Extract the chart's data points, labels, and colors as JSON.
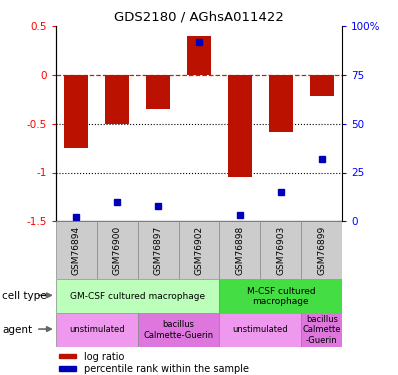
{
  "title": "GDS2180 / AGhsA011422",
  "samples": [
    "GSM76894",
    "GSM76900",
    "GSM76897",
    "GSM76902",
    "GSM76898",
    "GSM76903",
    "GSM76899"
  ],
  "log_ratio": [
    -0.75,
    -0.5,
    -0.35,
    0.4,
    -1.05,
    -0.58,
    -0.22
  ],
  "percentile": [
    2,
    10,
    8,
    92,
    3,
    15,
    32
  ],
  "ylim_left": [
    -1.5,
    0.5
  ],
  "ylim_right": [
    0,
    100
  ],
  "bar_color": "#bb1100",
  "dot_color": "#0000bb",
  "hline_color": "#cc2200",
  "dotted_lines": [
    -0.5,
    -1.0
  ],
  "cell_type_groups": [
    {
      "label": "GM-CSF cultured macrophage",
      "start": 0,
      "end": 4,
      "color": "#bbffbb"
    },
    {
      "label": "M-CSF cultured\nmacrophage",
      "start": 4,
      "end": 7,
      "color": "#44dd44"
    }
  ],
  "agent_groups": [
    {
      "label": "unstimulated",
      "start": 0,
      "end": 2,
      "color": "#ee99ee"
    },
    {
      "label": "bacillus\nCalmette-Guerin",
      "start": 2,
      "end": 4,
      "color": "#dd77dd"
    },
    {
      "label": "unstimulated",
      "start": 4,
      "end": 6,
      "color": "#ee99ee"
    },
    {
      "label": "bacillus\nCalmette\n-Guerin",
      "start": 6,
      "end": 7,
      "color": "#dd77dd"
    }
  ],
  "left_ytick_vals": [
    -1.5,
    -1.0,
    -0.5,
    0.0,
    0.5
  ],
  "left_ytick_labels": [
    "-1.5",
    "-1",
    "-0.5",
    "0",
    "0.5"
  ],
  "right_ytick_vals": [
    0,
    25,
    50,
    75,
    100
  ],
  "right_ytick_labels": [
    "0",
    "25",
    "50",
    "75",
    "100%"
  ]
}
